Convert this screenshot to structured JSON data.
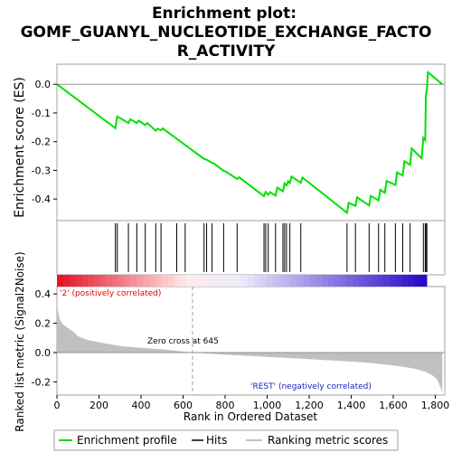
{
  "title_line1": "Enrichment plot:",
  "title_line2": "GOMF_GUANYL_NUCLEOTIDE_EXCHANGE_FACTO",
  "title_line3": "R_ACTIVITY",
  "colors": {
    "enrichment": "#00e000",
    "hits": "#000000",
    "metric_fill": "#c0c0c0",
    "zero_line": "#909090",
    "pos_label": "#e00000",
    "neg_label": "#2020c0",
    "frame": "#a0a0a0"
  },
  "chart_data": [
    {
      "type": "line",
      "name": "enrichment-plot",
      "ylabel": "Enrichment score (ES)",
      "ylim": [
        -0.475,
        0.07
      ],
      "yticks": [
        0.0,
        -0.1,
        -0.2,
        -0.3,
        -0.4
      ],
      "yticklabels": [
        "0.0",
        "-0.1",
        "-0.2",
        "-0.3",
        "-0.4"
      ],
      "xlim": [
        0,
        1845
      ],
      "grid": false,
      "series": [
        {
          "name": "Enrichment profile",
          "x": [
            0,
            278,
            287,
            340,
            349,
            380,
            389,
            420,
            430,
            470,
            478,
            495,
            503,
            700,
            712,
            738,
            746,
            793,
            802,
            857,
            866,
            985,
            993,
            1005,
            1013,
            1040,
            1048,
            1075,
            1083,
            1092,
            1100,
            1108,
            1116,
            1160,
            1168,
            1380,
            1388,
            1420,
            1428,
            1485,
            1493,
            1530,
            1538,
            1560,
            1568,
            1610,
            1618,
            1645,
            1653,
            1680,
            1688,
            1735,
            1743,
            1752,
            1755,
            1760,
            1765,
            1833
          ],
          "y": [
            0.0,
            -0.153,
            -0.112,
            -0.135,
            -0.122,
            -0.135,
            -0.127,
            -0.142,
            -0.135,
            -0.162,
            -0.155,
            -0.16,
            -0.154,
            -0.26,
            -0.263,
            -0.274,
            -0.276,
            -0.302,
            -0.304,
            -0.33,
            -0.324,
            -0.39,
            -0.375,
            -0.385,
            -0.376,
            -0.388,
            -0.36,
            -0.373,
            -0.345,
            -0.352,
            -0.338,
            -0.344,
            -0.322,
            -0.343,
            -0.325,
            -0.448,
            -0.413,
            -0.424,
            -0.394,
            -0.422,
            -0.389,
            -0.405,
            -0.368,
            -0.378,
            -0.337,
            -0.351,
            -0.307,
            -0.318,
            -0.268,
            -0.281,
            -0.224,
            -0.258,
            -0.187,
            -0.195,
            -0.04,
            -0.02,
            0.042,
            0.0
          ]
        }
      ]
    },
    {
      "type": "scatter",
      "name": "hits-panel",
      "hit_positions": [
        278,
        287,
        340,
        380,
        420,
        470,
        495,
        570,
        610,
        700,
        712,
        738,
        793,
        857,
        985,
        993,
        1005,
        1040,
        1075,
        1083,
        1092,
        1108,
        1160,
        1380,
        1420,
        1485,
        1530,
        1560,
        1610,
        1645,
        1680,
        1743,
        1752,
        1755,
        1760
      ]
    },
    {
      "type": "area",
      "name": "ranked-metric",
      "ylabel": "Ranked list metric (Signal2Noise)",
      "xlabel": "Rank in Ordered Dataset",
      "ylim": [
        -0.29,
        0.45
      ],
      "yticks": [
        0.4,
        0.2,
        0.0,
        -0.2
      ],
      "yticklabels": [
        "0.4",
        "0.2",
        "0.0",
        "-0.2"
      ],
      "xticks": [
        0,
        200,
        400,
        600,
        800,
        1000,
        1200,
        1400,
        1600,
        1800
      ],
      "xticklabels": [
        "0",
        "200",
        "400",
        "600",
        "800",
        "1,000",
        "1,200",
        "1,400",
        "1,600",
        "1,800"
      ],
      "x": [
        0,
        5,
        15,
        30,
        50,
        80,
        100,
        150,
        200,
        300,
        400,
        500,
        645,
        800,
        1000,
        1200,
        1400,
        1500,
        1600,
        1650,
        1700,
        1750,
        1780,
        1800,
        1815,
        1825,
        1833
      ],
      "values": [
        0.35,
        0.28,
        0.22,
        0.19,
        0.17,
        0.14,
        0.11,
        0.085,
        0.07,
        0.045,
        0.032,
        0.022,
        0.0,
        -0.015,
        -0.03,
        -0.045,
        -0.062,
        -0.072,
        -0.088,
        -0.098,
        -0.11,
        -0.13,
        -0.15,
        -0.17,
        -0.2,
        -0.24,
        -0.275
      ],
      "zero_cross_rank": 645,
      "annotations": {
        "pos": "'2' (positively correlated)",
        "neg": "'REST' (negatively correlated)",
        "zero": "Zero cross at 645"
      }
    }
  ],
  "legend": [
    {
      "label": "Enrichment profile"
    },
    {
      "label": "Hits"
    },
    {
      "label": "Ranking metric scores"
    }
  ]
}
